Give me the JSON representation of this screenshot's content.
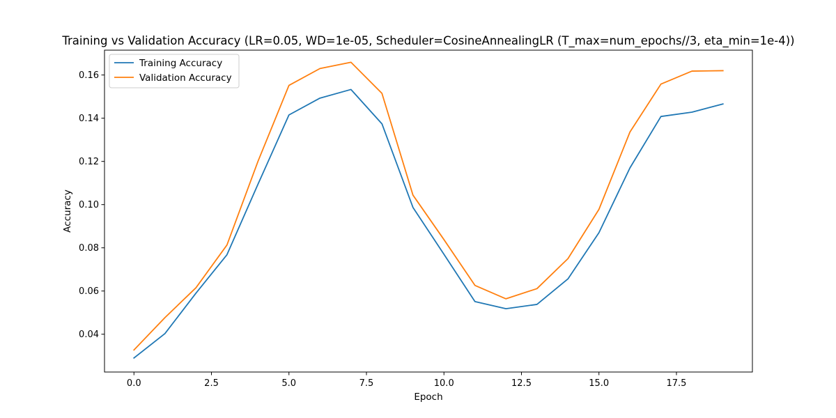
{
  "chart_data": {
    "type": "line",
    "title": "Training vs Validation Accuracy (LR=0.05, WD=1e-05, Scheduler=CosineAnnealingLR (T_max=num_epochs//3, eta_min=1e-4))",
    "xlabel": "Epoch",
    "ylabel": "Accuracy",
    "xlim": [
      -0.95,
      19.95
    ],
    "ylim": [
      0.0225,
      0.1715
    ],
    "x_ticks": [
      0.0,
      2.5,
      5.0,
      7.5,
      10.0,
      12.5,
      15.0,
      17.5
    ],
    "x_tick_labels": [
      "0.0",
      "2.5",
      "5.0",
      "7.5",
      "10.0",
      "12.5",
      "15.0",
      "17.5"
    ],
    "y_ticks": [
      0.04,
      0.06,
      0.08,
      0.1,
      0.12,
      0.14,
      0.16
    ],
    "y_tick_labels": [
      "0.04",
      "0.06",
      "0.08",
      "0.10",
      "0.12",
      "0.14",
      "0.16"
    ],
    "grid": false,
    "legend_position": "top-left",
    "x": [
      0,
      1,
      2,
      3,
      4,
      5,
      6,
      7,
      8,
      9,
      10,
      11,
      12,
      13,
      14,
      15,
      16,
      17,
      18,
      19
    ],
    "series": [
      {
        "name": "Training Accuracy",
        "color": "#1f77b4",
        "values": [
          0.029,
          0.0403,
          0.059,
          0.0768,
          0.1094,
          0.1415,
          0.1493,
          0.1533,
          0.1374,
          0.0987,
          0.077,
          0.0551,
          0.0518,
          0.0538,
          0.0656,
          0.087,
          0.117,
          0.1408,
          0.1428,
          0.1466
        ]
      },
      {
        "name": "Validation Accuracy",
        "color": "#ff7f0e",
        "values": [
          0.0327,
          0.0477,
          0.0615,
          0.0813,
          0.12,
          0.1552,
          0.163,
          0.1659,
          0.1515,
          0.1044,
          0.0838,
          0.0626,
          0.0564,
          0.0611,
          0.075,
          0.0978,
          0.1336,
          0.1558,
          0.1618,
          0.162
        ]
      }
    ]
  }
}
